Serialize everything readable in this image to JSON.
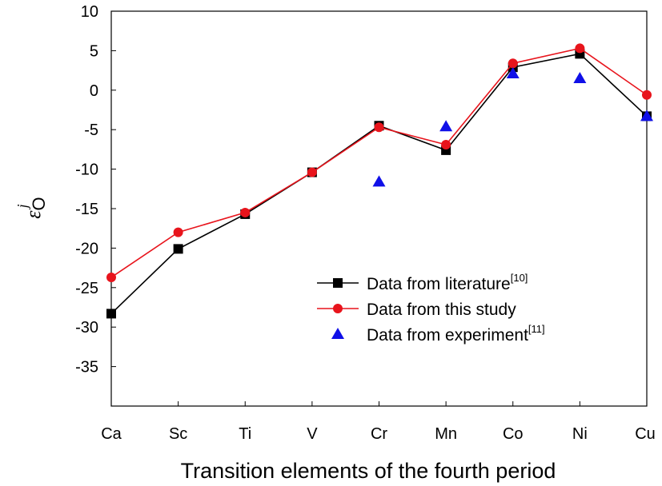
{
  "chart_data": {
    "type": "line",
    "title": "",
    "xlabel": "Transition elements of the fourth period",
    "ylabel": {
      "symbol": "ε",
      "subscript": "O",
      "superscript": "j"
    },
    "categories": [
      "Ca",
      "Sc",
      "Ti",
      "V",
      "Cr",
      "Mn",
      "Co",
      "Ni",
      "Cu"
    ],
    "ylim": [
      -40,
      10
    ],
    "yticks": [
      10,
      5,
      0,
      -5,
      -10,
      -15,
      -20,
      -25,
      -30,
      -35
    ],
    "grid": false,
    "legend_position": "lower-right",
    "series": [
      {
        "name": "Data from literature",
        "name_sup": "[10]",
        "color": "#000000",
        "marker": "square",
        "line": true,
        "values": [
          -28.3,
          -20.1,
          -15.7,
          -10.4,
          -4.5,
          -7.6,
          2.9,
          4.6,
          -3.3
        ]
      },
      {
        "name": "Data from this study",
        "name_sup": "",
        "color": "#e8141c",
        "marker": "circle",
        "line": true,
        "values": [
          -23.7,
          -18.0,
          -15.5,
          -10.4,
          -4.7,
          -6.9,
          3.4,
          5.3,
          -0.6
        ]
      },
      {
        "name": "Data from experiment",
        "name_sup": "[11]",
        "color": "#1010e8",
        "marker": "triangle",
        "line": false,
        "values": [
          null,
          null,
          null,
          null,
          -11.6,
          -4.6,
          2.1,
          1.5,
          -3.3
        ]
      }
    ]
  }
}
